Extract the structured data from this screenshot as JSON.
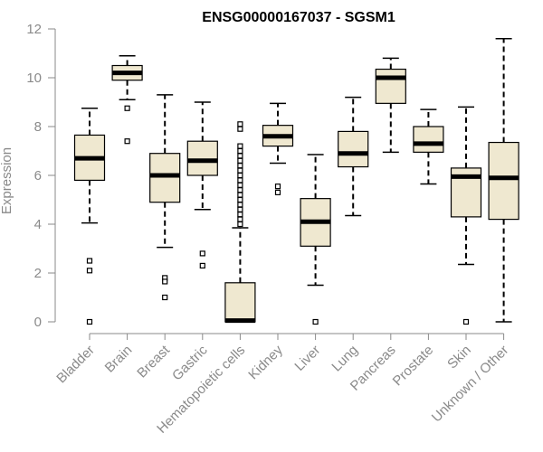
{
  "chart_data": {
    "type": "boxplot",
    "title": "ENSG00000167037 - SGSM1",
    "xlabel": "",
    "ylabel": "Expression",
    "ylim": [
      0,
      12
    ],
    "yticks": [
      0,
      2,
      4,
      6,
      8,
      10,
      12
    ],
    "box_fill": "#efe8d0",
    "median_color": "#000000",
    "axis_color": "#8a8a8a",
    "categories": [
      "Bladder",
      "Brain",
      "Breast",
      "Gastric",
      "Hematopoietic cells",
      "Kidney",
      "Liver",
      "Lung",
      "Pancreas",
      "Prostate",
      "Skin",
      "Unknown / Other"
    ],
    "boxes": [
      {
        "category": "Bladder",
        "whisker_low": 4.05,
        "q1": 5.8,
        "median": 6.7,
        "q3": 7.65,
        "whisker_high": 8.75,
        "outliers": [
          2.5,
          2.1,
          0.0
        ]
      },
      {
        "category": "Brain",
        "whisker_low": 9.1,
        "q1": 9.9,
        "median": 10.2,
        "q3": 10.5,
        "whisker_high": 10.9,
        "outliers": [
          8.75,
          7.4
        ]
      },
      {
        "category": "Breast",
        "whisker_low": 3.05,
        "q1": 4.9,
        "median": 6.0,
        "q3": 6.9,
        "whisker_high": 9.3,
        "outliers": [
          1.8,
          1.65,
          1.0
        ]
      },
      {
        "category": "Gastric",
        "whisker_low": 4.6,
        "q1": 6.0,
        "median": 6.6,
        "q3": 7.4,
        "whisker_high": 9.0,
        "outliers": [
          2.8,
          2.3
        ]
      },
      {
        "category": "Hematopoietic cells",
        "whisker_low": 0.0,
        "q1": 0.0,
        "median": 0.05,
        "q3": 1.6,
        "whisker_high": 3.85,
        "outliers": [
          4.0,
          4.2,
          4.4,
          4.6,
          4.8,
          5.0,
          5.2,
          5.4,
          5.6,
          5.8,
          6.0,
          6.2,
          6.4,
          6.6,
          6.8,
          7.0,
          7.2,
          7.9,
          8.1
        ]
      },
      {
        "category": "Kidney",
        "whisker_low": 6.5,
        "q1": 7.2,
        "median": 7.6,
        "q3": 8.05,
        "whisker_high": 8.95,
        "outliers": [
          5.55,
          5.3
        ]
      },
      {
        "category": "Liver",
        "whisker_low": 1.5,
        "q1": 3.1,
        "median": 4.1,
        "q3": 5.05,
        "whisker_high": 6.85,
        "outliers": [
          0.0
        ]
      },
      {
        "category": "Lung",
        "whisker_low": 4.35,
        "q1": 6.35,
        "median": 6.9,
        "q3": 7.8,
        "whisker_high": 9.2,
        "outliers": []
      },
      {
        "category": "Pancreas",
        "whisker_low": 6.95,
        "q1": 8.95,
        "median": 10.0,
        "q3": 10.35,
        "whisker_high": 10.8,
        "outliers": []
      },
      {
        "category": "Prostate",
        "whisker_low": 5.65,
        "q1": 6.95,
        "median": 7.3,
        "q3": 8.0,
        "whisker_high": 8.7,
        "outliers": []
      },
      {
        "category": "Skin",
        "whisker_low": 2.35,
        "q1": 4.3,
        "median": 5.95,
        "q3": 6.3,
        "whisker_high": 8.8,
        "outliers": [
          0.0
        ]
      },
      {
        "category": "Unknown / Other",
        "whisker_low": 0.0,
        "q1": 4.2,
        "median": 5.9,
        "q3": 7.35,
        "whisker_high": 11.6,
        "outliers": []
      }
    ]
  }
}
